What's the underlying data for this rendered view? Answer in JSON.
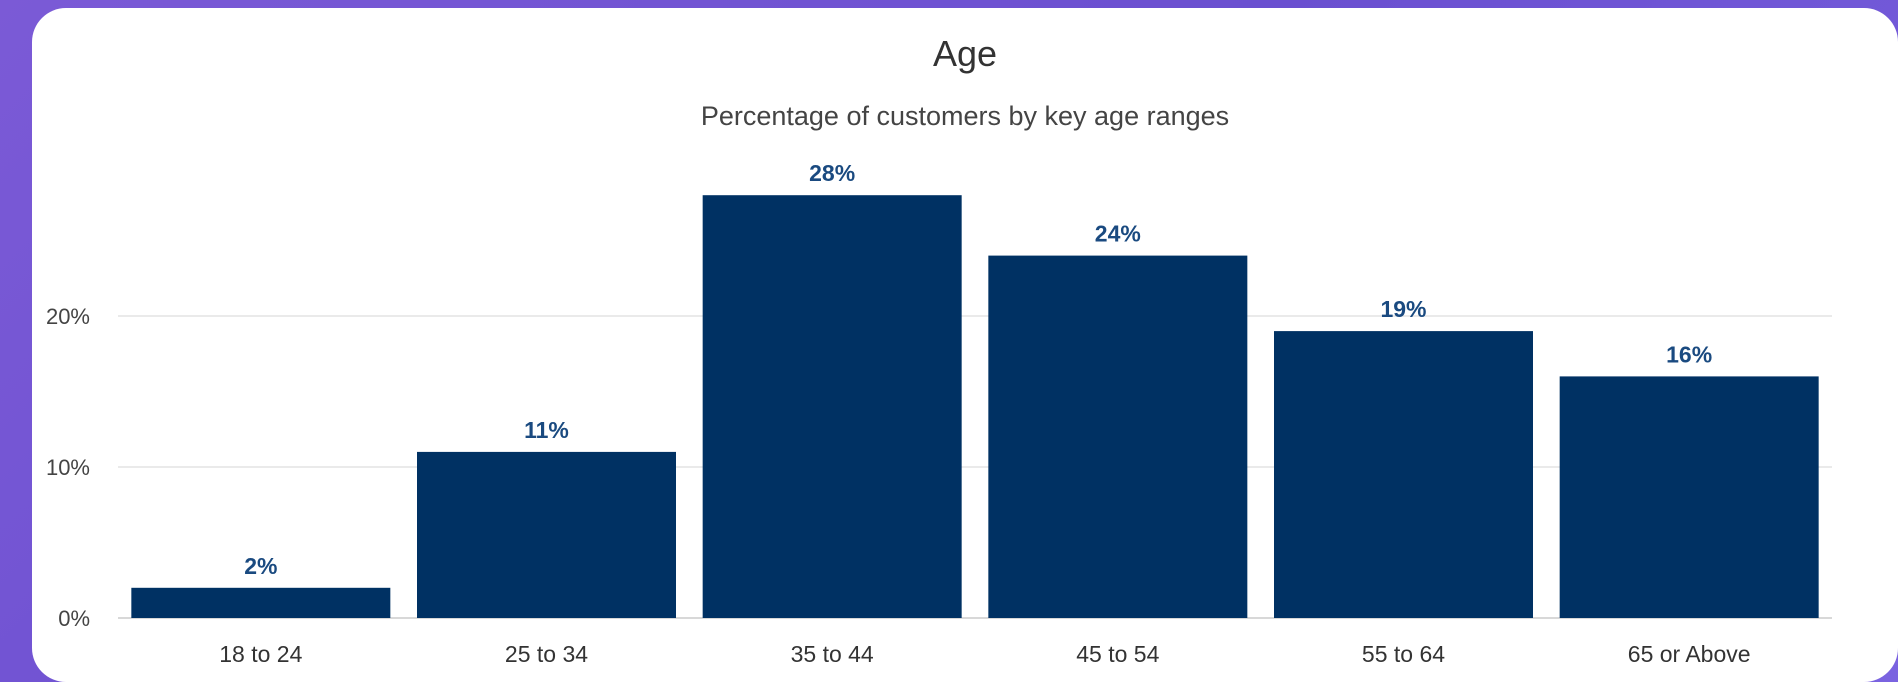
{
  "chart_data": {
    "type": "bar",
    "title": "Age",
    "subtitle": "Percentage of customers by key age ranges",
    "categories": [
      "18 to 24",
      "25 to 34",
      "35 to 44",
      "45 to 54",
      "55 to 64",
      "65 or Above"
    ],
    "values": [
      2,
      11,
      28,
      24,
      19,
      16
    ],
    "value_labels": [
      "2%",
      "11%",
      "28%",
      "24%",
      "19%",
      "16%"
    ],
    "y_ticks": [
      0,
      10,
      20
    ],
    "y_tick_labels": [
      "0%",
      "10%",
      "20%"
    ],
    "ylim": [
      0,
      30
    ],
    "xlabel": "",
    "ylabel": "",
    "grid": true,
    "legend": "none",
    "bar_color": "#003163",
    "label_color": "#1a4a80"
  }
}
